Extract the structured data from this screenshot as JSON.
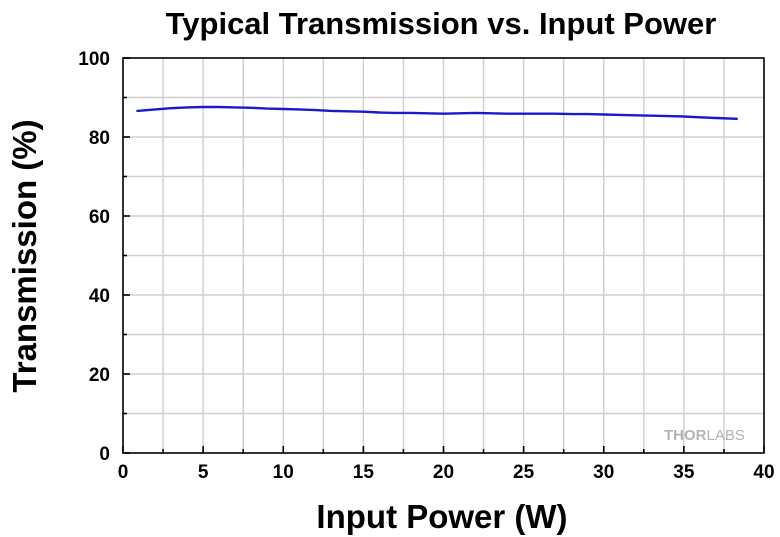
{
  "chart_data": {
    "type": "line",
    "title": "Typical Transmission vs. Input Power",
    "xlabel": "Input Power (W)",
    "ylabel": "Transmission (%)",
    "xlim": [
      0,
      40
    ],
    "ylim": [
      0,
      100
    ],
    "xticks": [
      0,
      5,
      10,
      15,
      20,
      25,
      30,
      35,
      40
    ],
    "yticks": [
      0,
      20,
      40,
      60,
      80,
      100
    ],
    "grid": true,
    "series": [
      {
        "color": "#1a1acc",
        "x": [
          0.9,
          2,
          3,
          4,
          5,
          6,
          7,
          8,
          9,
          10,
          11,
          12,
          13,
          14,
          15,
          16,
          17,
          18,
          19,
          20,
          21,
          22,
          23,
          24,
          25,
          26,
          27,
          28,
          29,
          30,
          31,
          32,
          33,
          34,
          35,
          36,
          37,
          38.3
        ],
        "y": [
          86.6,
          87.0,
          87.3,
          87.5,
          87.6,
          87.6,
          87.5,
          87.4,
          87.2,
          87.1,
          87.0,
          86.8,
          86.6,
          86.5,
          86.4,
          86.2,
          86.1,
          86.1,
          86.0,
          85.9,
          86.0,
          86.1,
          86.0,
          85.9,
          85.9,
          85.9,
          85.9,
          85.8,
          85.8,
          85.7,
          85.6,
          85.5,
          85.4,
          85.3,
          85.2,
          85.0,
          84.8,
          84.6
        ]
      }
    ]
  },
  "watermark": {
    "brand_bold": "THOR",
    "brand_light": "LABS"
  }
}
